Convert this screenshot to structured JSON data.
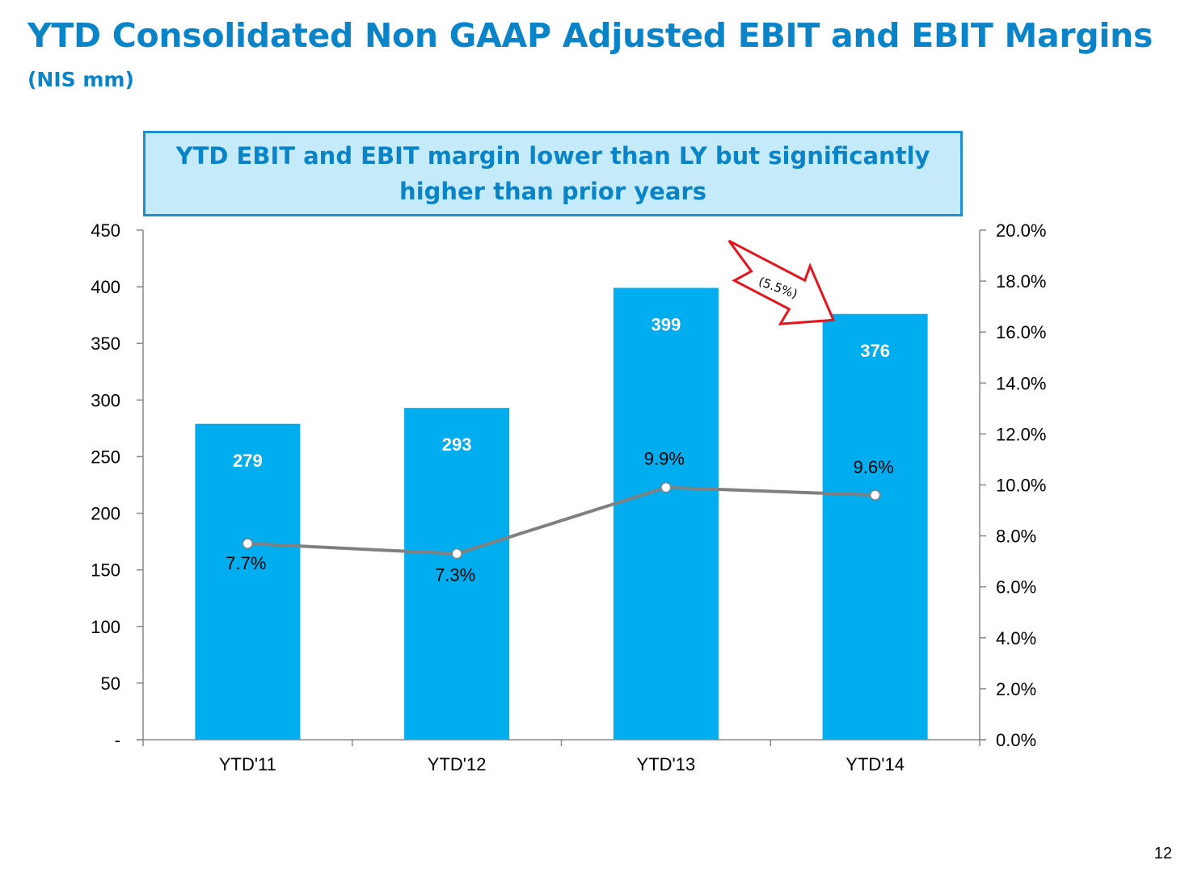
{
  "slide": {
    "title": "YTD Consolidated Non GAAP Adjusted EBIT and EBIT Margins",
    "subtitle": "(NIS mm)",
    "callout": "YTD EBIT and EBIT margin lower than LY but significantly higher than prior years",
    "page_number": "12"
  },
  "chart_data": {
    "type": "bar",
    "categories": [
      "YTD'11",
      "YTD'12",
      "YTD'13",
      "YTD'14"
    ],
    "series": [
      {
        "type": "bar",
        "axis": "left",
        "values": [
          279,
          293,
          399,
          376
        ],
        "labels": [
          "279",
          "293",
          "399",
          "376"
        ],
        "color": "#00aeef"
      },
      {
        "type": "line",
        "axis": "right",
        "values": [
          7.7,
          7.3,
          9.9,
          9.6
        ],
        "labels": [
          "7.7%",
          "7.3%",
          "9.9%",
          "9.6%"
        ],
        "color": "#808080"
      }
    ],
    "y_left": {
      "ylim": [
        0,
        450
      ],
      "ticks": [
        0,
        50,
        100,
        150,
        200,
        250,
        300,
        350,
        400,
        450
      ],
      "tick_labels": [
        "-",
        "50",
        "100",
        "150",
        "200",
        "250",
        "300",
        "350",
        "400",
        "450"
      ]
    },
    "y_right": {
      "ylim": [
        0,
        20
      ],
      "ticks": [
        0,
        2,
        4,
        6,
        8,
        10,
        12,
        14,
        16,
        18,
        20
      ],
      "tick_labels": [
        "0.0%",
        "2.0%",
        "4.0%",
        "6.0%",
        "8.0%",
        "10.0%",
        "12.0%",
        "14.0%",
        "16.0%",
        "18.0%",
        "20.0%"
      ]
    },
    "grid": false,
    "annotation": {
      "text": "(5.5%)",
      "from": "YTD'13",
      "to": "YTD'14",
      "color": "#e8141c"
    }
  }
}
